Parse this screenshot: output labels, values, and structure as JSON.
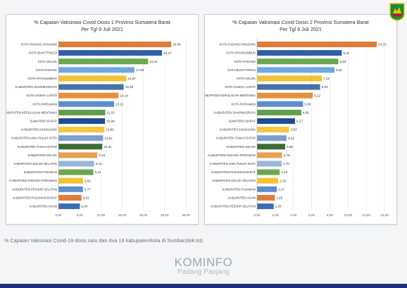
{
  "caption": "% Capaian Vaksinasi Covid-19 dosis satu dan dua 19 kabupaten/kota di Sumbar(dok:ist).",
  "brand": {
    "name": "KOMINFO",
    "subtitle": "Padang Panjang"
  },
  "logo": {
    "icon": "province-crest-icon",
    "colors": [
      "#1a8a3a",
      "#f2c200",
      "#c8102e"
    ]
  },
  "chart_data": [
    {
      "type": "bar",
      "orientation": "horizontal",
      "title": "% Capaian Vaksinasi Covid Dosis 1 Provinsi Sumatera Barat",
      "subtitle": "Per Tgl 9 Juli 2021",
      "categories": [
        "KOTA PADANG PANJANG",
        "KOTA BUKITTINGGI",
        "KOTA SOLOK",
        "KOTA PADANG",
        "KOTA PAYAKUMBUH",
        "KABUPATEN DHARMASRAYA",
        "KOTA SAWAH LUNTO",
        "KOTA PARIAMAN",
        "KABUPATEN KEPULAUAN MENTAWAI",
        "SUMATERA BARAT",
        "KABUPATEN SIJUNJUNG",
        "KABUPATEN LIMA PULUH KOTA",
        "KABUPATEN TANAH DATAR",
        "KABUPATEN SOLOK",
        "KABUPATEN SOLOK SELATAN",
        "KABUPATEN PASAMAN",
        "KABUPATEN PADANG PARIAMAN",
        "KABUPATEN PESISIR SELATAN",
        "KABUPATEN PASAMAN BARAT",
        "KABUPATEN AGAM"
      ],
      "values": [
        26.54,
        24.37,
        21.11,
        17.88,
        15.97,
        15.36,
        14.14,
        13.11,
        11.03,
        10.96,
        10.83,
        10.51,
        10.31,
        9.15,
        8.41,
        8.21,
        5.81,
        5.77,
        5.42,
        5.04
      ],
      "value_labels": [
        "26,54",
        "24,37",
        "21,11",
        "17,88",
        "15,97",
        "15,36",
        "14,14",
        "13,11",
        "11,03",
        "10,96",
        "10,83",
        "10,51",
        "10,31",
        "9,15",
        "8,41",
        "8,21",
        "5,81",
        "5,77",
        "5,42",
        "5,04"
      ],
      "xlim": [
        0,
        30
      ],
      "xticks": [
        "0,00",
        "5,00",
        "10,00",
        "15,00",
        "20,00",
        "25,00",
        "30,00"
      ],
      "colors": [
        "#e07b39",
        "#2e5fa8",
        "#6aa84f",
        "#6fa8dc",
        "#f1c232",
        "#4a6fa5",
        "#e69138",
        "#5b8fcc",
        "#5f9e4a",
        "#1f4e8c",
        "#f6c744",
        "#7aa0d0",
        "#3d6b35",
        "#e6a050",
        "#9ab6d8",
        "#6aa84f",
        "#f1c232",
        "#5b8fcc",
        "#e07b39",
        "#3c6eb4"
      ],
      "grid": true,
      "legend": "none"
    },
    {
      "type": "bar",
      "orientation": "horizontal",
      "title": "% Capaian Vaksinasi Covid Dosis 2 Provinsi Sumatera Barat",
      "subtitle": "Per Tgl 9 Juli 2021",
      "categories": [
        "KOTA PADANG PANJANG",
        "KOTA PAYAKUMBUH",
        "KOTA PADANG",
        "KOTA BUKITTINGGI",
        "KOTA SOLOK",
        "KOTA SAWAH LUNTO",
        "KABUPATEN KEPULAUAN MENTAWAI",
        "KOTA PARIAMAN",
        "KABUPATEN DHARMASRAYA",
        "SUMATERA BARAT",
        "KABUPATEN SIJUNJUNG",
        "KABUPATEN TANAH DATAR",
        "KABUPATEN SOLOK",
        "KABUPATEN PADANG PARIAMAN",
        "KABUPATEN LIMA PULUH KOTA",
        "KABUPATEN PASAMAN BARAT",
        "KABUPATEN SOLOK SELATAN",
        "KABUPATEN PASAMAN",
        "KABUPATEN AGAM",
        "KABUPATEN PESISIR SELATAN"
      ],
      "values": [
        13.15,
        9.31,
        8.93,
        8.51,
        7.12,
        6.93,
        6.12,
        5.06,
        4.86,
        4.17,
        3.53,
        3.24,
        3.09,
        2.76,
        2.7,
        2.49,
        2.33,
        2.17,
        1.95,
        1.83
      ],
      "value_labels": [
        "13,15",
        "9,31",
        "8,93",
        "8,51",
        "7,12",
        "6,93",
        "6,12",
        "5,06",
        "4,86",
        "4,17",
        "3,53",
        "3,24",
        "3,09",
        "2,76",
        "2,70",
        "2,49",
        "2,33",
        "2,17",
        "1,95",
        "1,83"
      ],
      "xlim": [
        0,
        14
      ],
      "xticks": [
        "0,00",
        "2,00",
        "4,00",
        "6,00",
        "8,00",
        "10,00",
        "12,00",
        "14,00"
      ],
      "colors": [
        "#e07b39",
        "#2e5fa8",
        "#6aa84f",
        "#6fa8dc",
        "#f1c232",
        "#4a6fa5",
        "#e69138",
        "#5b8fcc",
        "#5f9e4a",
        "#1f4e8c",
        "#f6c744",
        "#7aa0d0",
        "#3d6b35",
        "#e6a050",
        "#9ab6d8",
        "#6aa84f",
        "#f1c232",
        "#5b8fcc",
        "#e07b39",
        "#3c6eb4"
      ],
      "grid": true,
      "legend": "none"
    }
  ]
}
